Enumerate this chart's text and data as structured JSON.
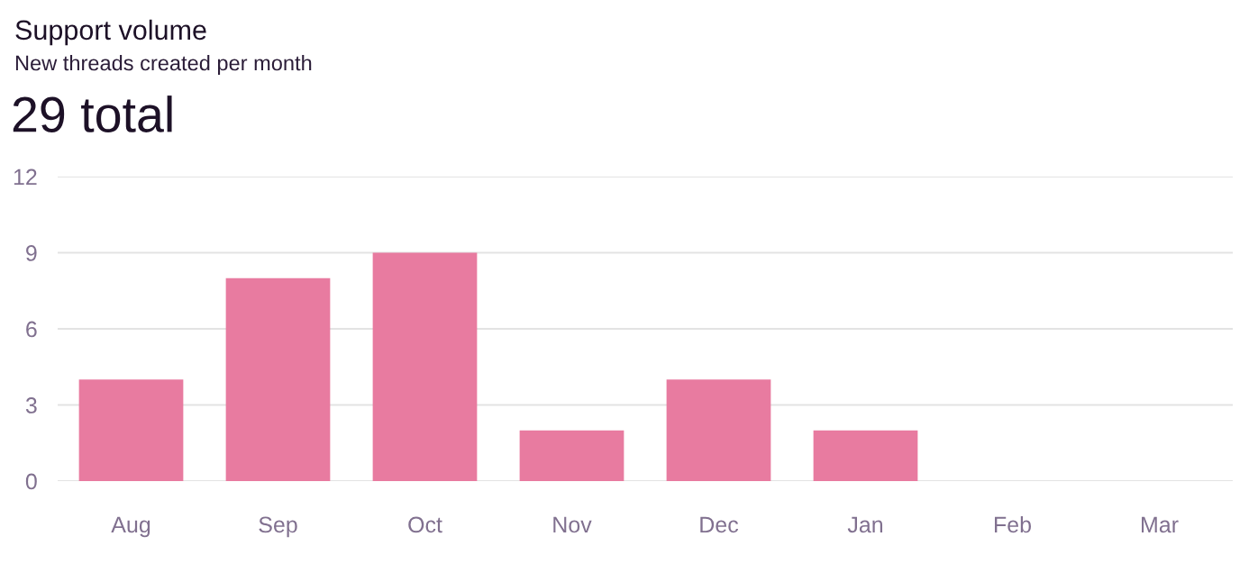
{
  "chart_data": {
    "type": "bar",
    "title": "Support volume",
    "subtitle": "New threads created per month",
    "annotations": [
      "29 total"
    ],
    "categories": [
      "Aug",
      "Sep",
      "Oct",
      "Nov",
      "Dec",
      "Jan",
      "Feb",
      "Mar"
    ],
    "values": [
      4,
      8,
      9,
      2,
      4,
      2,
      0,
      0
    ],
    "color": "#e87ba0",
    "ylim": [
      0,
      12
    ],
    "yticks": [
      0,
      3,
      6,
      9,
      12
    ],
    "grid": "y",
    "legend": false
  }
}
